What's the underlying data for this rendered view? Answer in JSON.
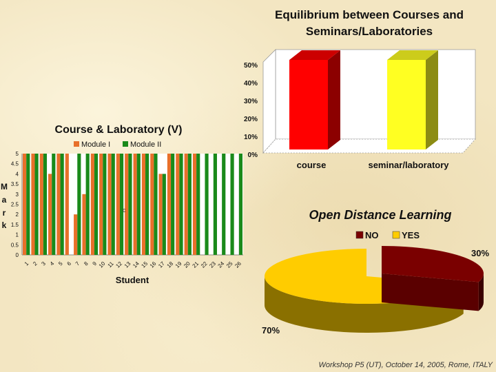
{
  "footer": "Workshop P5 (UT), October 14, 2005, Rome, ITALY",
  "colors": {
    "module_1": "#e8702a",
    "module_2": "#1a8a1a",
    "course_bar": "#ff0000",
    "seminar_bar": "#ffff22",
    "pie_no": "#7a0000",
    "pie_yes": "#ffcc00"
  },
  "chart_data": [
    {
      "type": "bar",
      "title": "Equilibrium between Courses and Seminars/Laboratories",
      "title_lines": [
        "Equilibrium between Courses and",
        "Seminars/Laboratories"
      ],
      "categories": [
        "course",
        "seminar/laboratory"
      ],
      "values": [
        0.5,
        0.5
      ],
      "ylim": [
        0,
        0.5
      ],
      "yticks": [
        "0%",
        "10%",
        "20%",
        "30%",
        "40%",
        "50%"
      ],
      "grid": false,
      "legend": "none"
    },
    {
      "type": "bar",
      "title": "Course & Laboratory (V)",
      "xlabel": "Student",
      "ylabel_letters": [
        "M",
        "a",
        "r",
        "k"
      ],
      "ylim": [
        0,
        5
      ],
      "yticks": [
        "0",
        "0.5",
        "1",
        "1.5",
        "2",
        "2.5",
        "3",
        "3.5",
        "4",
        "4.5",
        "5"
      ],
      "categories": [
        "1",
        "2",
        "3",
        "4",
        "5",
        "6",
        "7",
        "8",
        "9",
        "10",
        "11",
        "12",
        "13",
        "14",
        "15",
        "16",
        "17",
        "18",
        "19",
        "20",
        "21",
        "22",
        "23",
        "24",
        "25",
        "26"
      ],
      "series": [
        {
          "name": "Module I",
          "values": [
            5,
            5,
            5,
            4,
            5,
            5,
            2,
            3,
            5,
            5,
            5,
            5,
            5,
            5,
            5,
            5,
            4,
            5,
            5,
            5,
            5,
            0,
            0,
            0,
            0,
            0
          ]
        },
        {
          "name": "Module II",
          "values": [
            5,
            5,
            5,
            5,
            5,
            0,
            5,
            5,
            5,
            5,
            5,
            5,
            5,
            5,
            5,
            5,
            4,
            5,
            5,
            5,
            5,
            5,
            5,
            5,
            5,
            5
          ]
        }
      ],
      "annotation": "c",
      "legend": "top"
    },
    {
      "type": "pie",
      "title": "Open Distance Learning",
      "labels": [
        "NO",
        "YES"
      ],
      "values": [
        30,
        70
      ],
      "value_labels": [
        "30%",
        "70%"
      ],
      "legend": "top"
    }
  ]
}
